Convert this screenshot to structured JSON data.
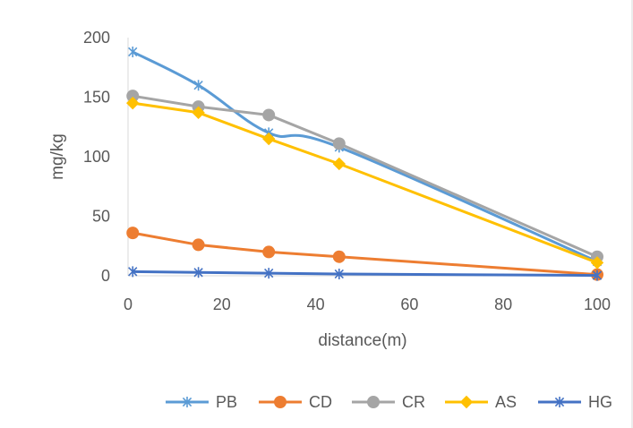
{
  "chart_data": {
    "type": "line",
    "title": "",
    "xlabel": "distance(m)",
    "ylabel": "mg/kg",
    "xlim": [
      0,
      100
    ],
    "ylim": [
      0,
      200
    ],
    "x_ticks": [
      "0",
      "20",
      "40",
      "60",
      "80",
      "100"
    ],
    "y_ticks": [
      "0",
      "50",
      "100",
      "150",
      "200"
    ],
    "grid": false,
    "legend_position": "bottom",
    "x": [
      1,
      15,
      30,
      45,
      100
    ],
    "series": [
      {
        "name": "PB",
        "values": [
          188,
          160,
          120,
          108,
          12
        ],
        "color": "#5B9BD5",
        "marker": "star",
        "smooth": true
      },
      {
        "name": "CD",
        "values": [
          36,
          26,
          20,
          16,
          1
        ],
        "color": "#ED7D31",
        "marker": "circle",
        "smooth": false
      },
      {
        "name": "CR",
        "values": [
          151,
          142,
          135,
          111,
          16
        ],
        "color": "#A5A5A5",
        "marker": "circle",
        "smooth": false
      },
      {
        "name": "AS",
        "values": [
          145,
          137,
          115,
          94,
          11
        ],
        "color": "#FFC000",
        "marker": "diamond",
        "smooth": false
      },
      {
        "name": "HG",
        "values": [
          3.5,
          2.8,
          2.2,
          1.5,
          0.3
        ],
        "color": "#4472C4",
        "marker": "star",
        "smooth": false
      }
    ]
  }
}
